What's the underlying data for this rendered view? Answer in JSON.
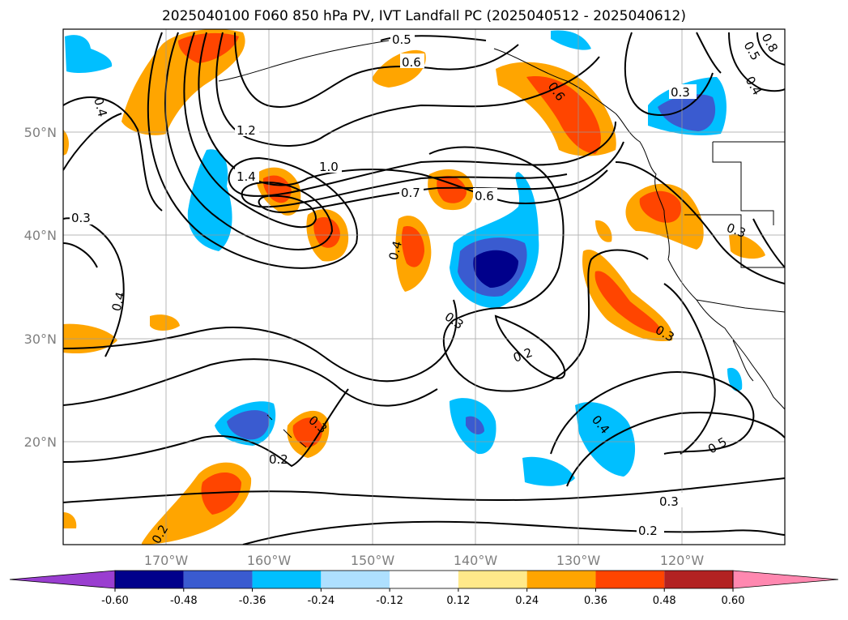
{
  "title": "2025040100 F060 850 hPa PV, IVT Landfall PC (2025040512 - 2025040612)",
  "lat_ticks": [
    {
      "value": 50,
      "label": "50°N"
    },
    {
      "value": 40,
      "label": "40°N"
    },
    {
      "value": 30,
      "label": "30°N"
    },
    {
      "value": 20,
      "label": "20°N"
    }
  ],
  "lon_ticks": [
    {
      "value": -170,
      "label": "170°W"
    },
    {
      "value": -160,
      "label": "160°W"
    },
    {
      "value": -150,
      "label": "150°W"
    },
    {
      "value": -140,
      "label": "140°W"
    },
    {
      "value": -130,
      "label": "130°W"
    },
    {
      "value": -120,
      "label": "120°W"
    }
  ],
  "extent": {
    "lon_min": -180,
    "lon_max": -110,
    "lat_min": 10,
    "lat_max": 60
  },
  "colorbar": {
    "levels": [
      "-0.60",
      "-0.48",
      "-0.36",
      "-0.24",
      "-0.12",
      "0.12",
      "0.24",
      "0.36",
      "0.48",
      "0.60"
    ],
    "colors": [
      "#9a3ed0",
      "#00008b",
      "#3a5bd0",
      "#00bfff",
      "#aee0ff",
      "#ffffff",
      "#ffe98a",
      "#ffa500",
      "#ff4500",
      "#b22222",
      "#ff88b0"
    ]
  },
  "contour_labels": [
    "1.2",
    "1.4",
    "1.0",
    "0.7",
    "0.6",
    "0.5",
    "0.6",
    "0.3",
    "0.4",
    "0.4",
    "0.3",
    "0.2",
    "0.2",
    "0.3",
    "0.3",
    "0.4",
    "0.5",
    "0.3",
    "0.2",
    "0.2",
    "0.4",
    "0.3",
    "0.3",
    "0.6",
    "0.5",
    "0.4",
    "0.8"
  ]
}
